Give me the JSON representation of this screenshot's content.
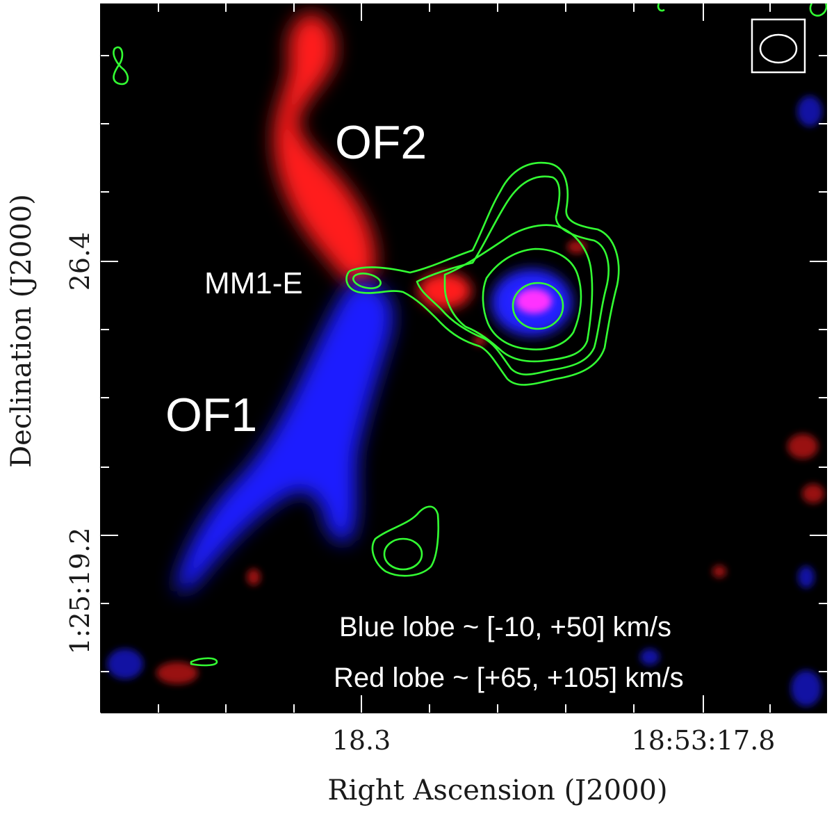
{
  "figure": {
    "x_axis_title": "Right Ascension (J2000)",
    "y_axis_title": "Declination (J2000)",
    "x_tick_labels": [
      "18.3",
      "18:53:17.8"
    ],
    "y_tick_labels": [
      "26.4",
      "1:25:19.2"
    ],
    "labels": {
      "of2": "OF2",
      "of1": "OF1",
      "mm1e": "MM1-E"
    },
    "legend": {
      "blue_lobe": "Blue lobe ~ [-10, +50] km/s",
      "red_lobe": "Red lobe ~ [+65, +105] km/s"
    },
    "colors": {
      "background": "#000000",
      "red_lobe": "#ff1a1a",
      "blue_lobe": "#1a1aff",
      "contour": "#33ff33",
      "core": "#ff33ff",
      "text": "#ffffff"
    }
  }
}
